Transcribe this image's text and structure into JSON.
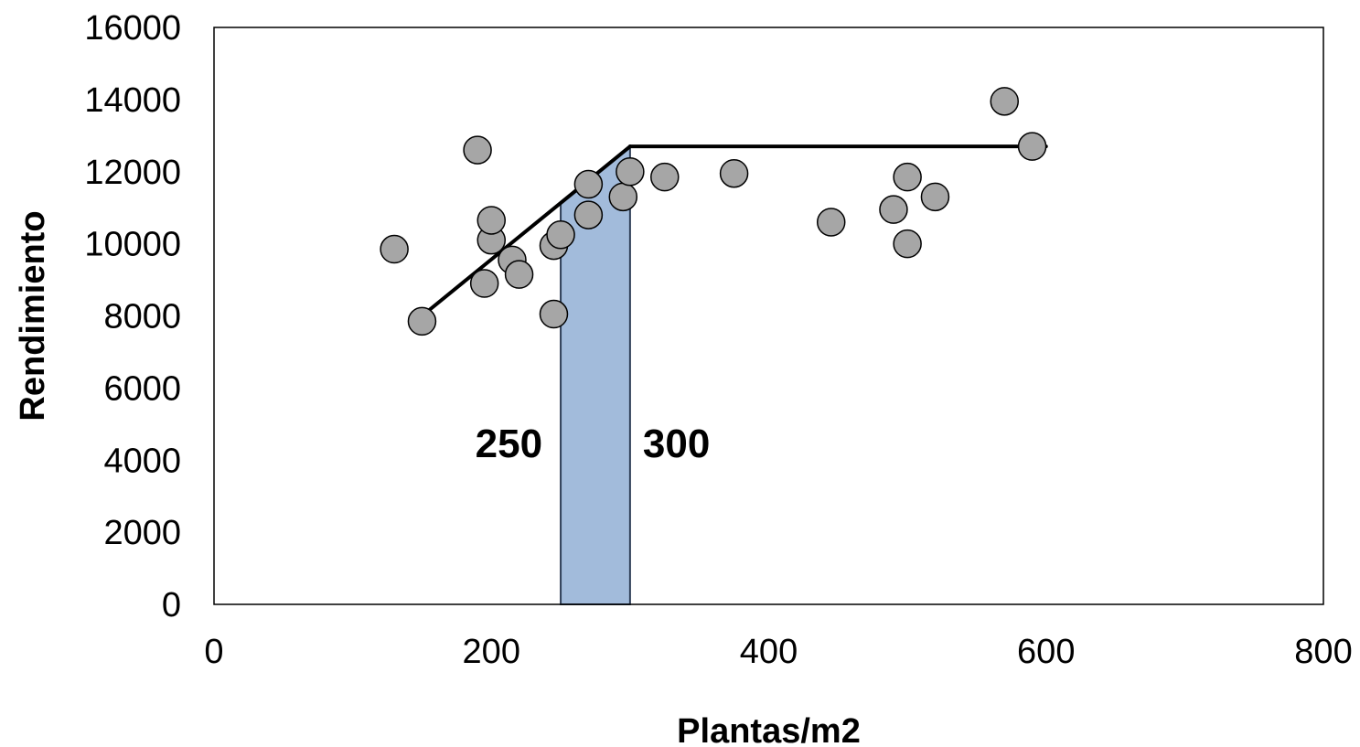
{
  "chart_data": {
    "type": "scatter",
    "title": "",
    "xlabel": "Plantas/m2",
    "ylabel": "Rendimiento",
    "xlim": [
      0,
      800
    ],
    "ylim": [
      0,
      16000
    ],
    "xticks": [
      0,
      200,
      400,
      600,
      800
    ],
    "yticks": [
      0,
      2000,
      4000,
      6000,
      8000,
      10000,
      12000,
      14000,
      16000
    ],
    "grid": false,
    "legend": "none",
    "series": [
      {
        "type": "scatter",
        "color": "#A6A6A6",
        "points": [
          {
            "x": 130,
            "y": 9850
          },
          {
            "x": 150,
            "y": 7850
          },
          {
            "x": 190,
            "y": 12600
          },
          {
            "x": 195,
            "y": 8900
          },
          {
            "x": 200,
            "y": 10100
          },
          {
            "x": 200,
            "y": 10650
          },
          {
            "x": 215,
            "y": 9550
          },
          {
            "x": 220,
            "y": 9150
          },
          {
            "x": 245,
            "y": 9950
          },
          {
            "x": 245,
            "y": 8050
          },
          {
            "x": 250,
            "y": 10250
          },
          {
            "x": 270,
            "y": 11650
          },
          {
            "x": 270,
            "y": 10800
          },
          {
            "x": 295,
            "y": 11300
          },
          {
            "x": 300,
            "y": 12000
          },
          {
            "x": 325,
            "y": 11850
          },
          {
            "x": 375,
            "y": 11950
          },
          {
            "x": 445,
            "y": 10600
          },
          {
            "x": 490,
            "y": 10950
          },
          {
            "x": 500,
            "y": 11850
          },
          {
            "x": 500,
            "y": 10000
          },
          {
            "x": 520,
            "y": 11300
          },
          {
            "x": 570,
            "y": 13950
          },
          {
            "x": 590,
            "y": 12700
          }
        ]
      },
      {
        "type": "line",
        "color": "#000000",
        "points": [
          {
            "x": 150,
            "y": 8000
          },
          {
            "x": 300,
            "y": 12700
          },
          {
            "x": 600,
            "y": 12700
          }
        ]
      }
    ],
    "band": {
      "x_from": 250,
      "x_to": 300,
      "color": "#9DB7D9",
      "edge": "#2F3F57"
    },
    "annotations": [
      {
        "text": "250",
        "x": 250
      },
      {
        "text": "300",
        "x": 300
      }
    ]
  }
}
